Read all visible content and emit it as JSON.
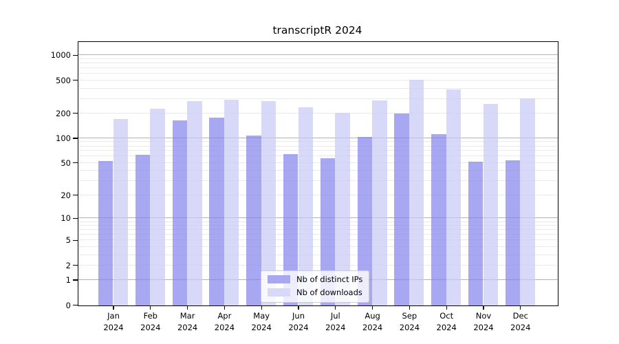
{
  "chart_data": {
    "type": "bar",
    "title": "transcriptR 2024",
    "x_tick_months": [
      "Jan",
      "Feb",
      "Mar",
      "Apr",
      "May",
      "Jun",
      "Jul",
      "Aug",
      "Sep",
      "Oct",
      "Nov",
      "Dec"
    ],
    "x_tick_year": "2024",
    "series": [
      {
        "name": "Nb of distinct IPs",
        "color": "rgba(130,130,236,0.7)",
        "color_flat": "#a8a8f1",
        "values": [
          53,
          64,
          167,
          179,
          108,
          65,
          58,
          104,
          203,
          113,
          52,
          54
        ]
      },
      {
        "name": "Nb of downloads",
        "color": "rgba(199,199,245,0.7)",
        "color_flat": "#d8d8f8",
        "values": [
          172,
          231,
          283,
          293,
          286,
          240,
          207,
          292,
          512,
          390,
          262,
          308
        ]
      }
    ],
    "y_axis": {
      "ticks": [
        0,
        1,
        2,
        5,
        10,
        20,
        50,
        100,
        200,
        500,
        1000
      ],
      "scale": "log10(value+1)",
      "top_value": 1450
    },
    "grid": {
      "on": true,
      "major_lines_at": [
        1,
        10,
        100,
        1000
      ],
      "major_color": "#b0b0b0",
      "minor_color": "#e9e9e9"
    },
    "legend": {
      "position": "lower center"
    }
  }
}
